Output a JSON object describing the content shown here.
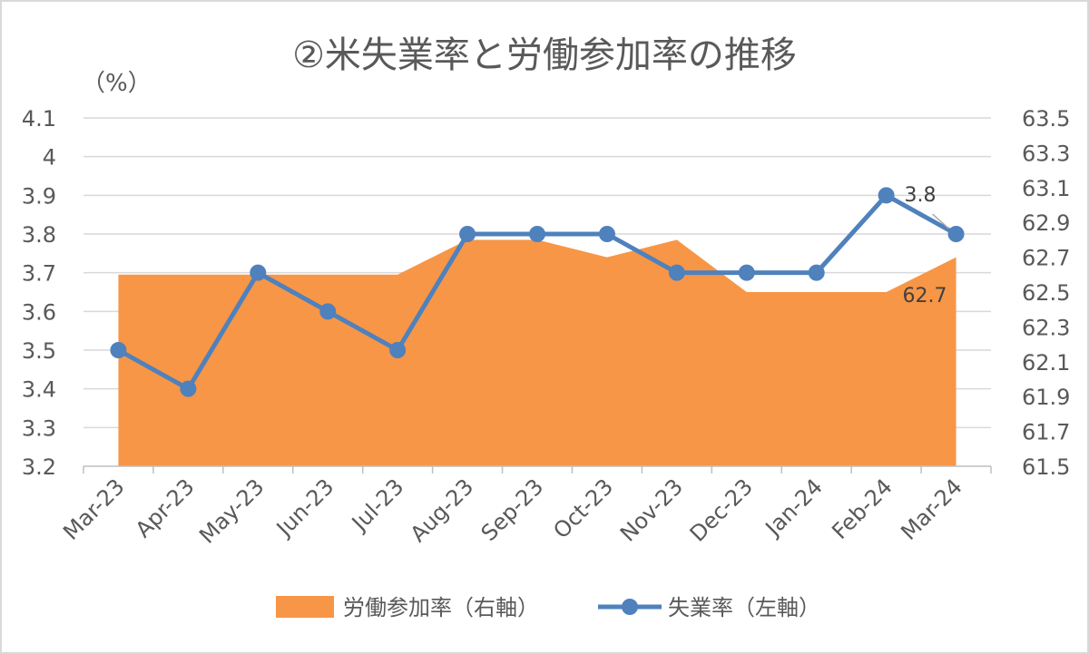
{
  "chart_data": {
    "type": "line",
    "title": "②米失業率と労働参加率の推移",
    "y_unit_label": "（%）",
    "categories": [
      "Mar-23",
      "Apr-23",
      "May-23",
      "Jun-23",
      "Jul-23",
      "Aug-23",
      "Sep-23",
      "Oct-23",
      "Nov-23",
      "Dec-23",
      "Jan-24",
      "Feb-24",
      "Mar-24"
    ],
    "y_left": {
      "lim": [
        3.2,
        4.1
      ],
      "ticks": [
        "3.2",
        "3.3",
        "3.4",
        "3.5",
        "3.6",
        "3.7",
        "3.8",
        "3.9",
        "4",
        "4.1"
      ]
    },
    "y_right": {
      "lim": [
        61.5,
        63.5
      ],
      "ticks": [
        "61.5",
        "61.7",
        "61.9",
        "62.1",
        "62.3",
        "62.5",
        "62.7",
        "62.9",
        "63.1",
        "63.3",
        "63.5"
      ]
    },
    "series": [
      {
        "name": "労働参加率（右軸）",
        "type": "area",
        "axis": "right",
        "color": "#f79646",
        "values": [
          62.6,
          62.6,
          62.6,
          62.6,
          62.6,
          62.8,
          62.8,
          62.7,
          62.8,
          62.5,
          62.5,
          62.5,
          62.7
        ],
        "end_label": "62.7"
      },
      {
        "name": "失業率（左軸）",
        "type": "line",
        "axis": "left",
        "color": "#4f81bd",
        "values": [
          3.5,
          3.4,
          3.7,
          3.6,
          3.5,
          3.8,
          3.8,
          3.8,
          3.7,
          3.7,
          3.7,
          3.9,
          3.8
        ],
        "end_label": "3.8"
      }
    ],
    "grid": true,
    "legend_position": "bottom"
  }
}
